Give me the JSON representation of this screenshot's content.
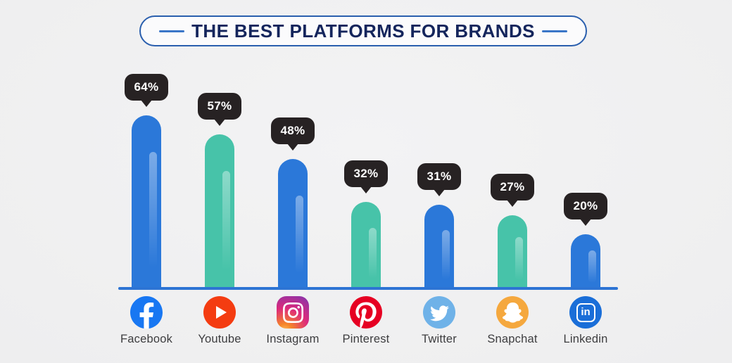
{
  "header": {
    "title": "THE BEST PLATFORMS FOR BRANDS"
  },
  "chart_data": {
    "type": "bar",
    "title": "THE BEST PLATFORMS FOR BRANDS",
    "categories": [
      "Facebook",
      "Youtube",
      "Instagram",
      "Pinterest",
      "Twitter",
      "Snapchat",
      "Linkedin"
    ],
    "values": [
      64,
      57,
      48,
      32,
      31,
      27,
      20
    ],
    "value_labels": [
      "64%",
      "57%",
      "48%",
      "32%",
      "31%",
      "27%",
      "20%"
    ],
    "xlabel": "",
    "ylabel": "",
    "ylim": [
      0,
      70
    ],
    "grid": false,
    "legend": "none",
    "bar_colors": [
      "#2b78d9",
      "#47c3a9",
      "#2b78d9",
      "#47c3a9",
      "#2b78d9",
      "#47c3a9",
      "#2b78d9"
    ]
  },
  "platforms": [
    {
      "name": "Facebook",
      "value": 64,
      "value_label": "64%",
      "bar_color": "#2b78d9",
      "icon": "facebook-icon",
      "brand_color": "#1877f2"
    },
    {
      "name": "Youtube",
      "value": 57,
      "value_label": "57%",
      "bar_color": "#47c3a9",
      "icon": "youtube-icon",
      "brand_color": "#f43c11"
    },
    {
      "name": "Instagram",
      "value": 48,
      "value_label": "48%",
      "bar_color": "#2b78d9",
      "icon": "instagram-icon",
      "brand_color": "#d62e77"
    },
    {
      "name": "Pinterest",
      "value": 32,
      "value_label": "32%",
      "bar_color": "#47c3a9",
      "icon": "pinterest-icon",
      "brand_color": "#e60023"
    },
    {
      "name": "Twitter",
      "value": 31,
      "value_label": "31%",
      "bar_color": "#2b78d9",
      "icon": "twitter-icon",
      "brand_color": "#6fb2e8"
    },
    {
      "name": "Snapchat",
      "value": 27,
      "value_label": "27%",
      "bar_color": "#47c3a9",
      "icon": "snapchat-icon",
      "brand_color": "#f5a83e"
    },
    {
      "name": "Linkedin",
      "value": 20,
      "value_label": "20%",
      "bar_color": "#2b78d9",
      "icon": "linkedin-icon",
      "brand_color": "#1a6ed8"
    }
  ],
  "style_colors": {
    "badge_background": "#272223",
    "badge_text": "#ffffff",
    "baseline": "#2d74d4",
    "title_text": "#14255c",
    "title_border": "#2a5fae",
    "label_text": "#3d3d3f",
    "bar_blue": "#2b78d9",
    "bar_teal": "#47c3a9"
  }
}
